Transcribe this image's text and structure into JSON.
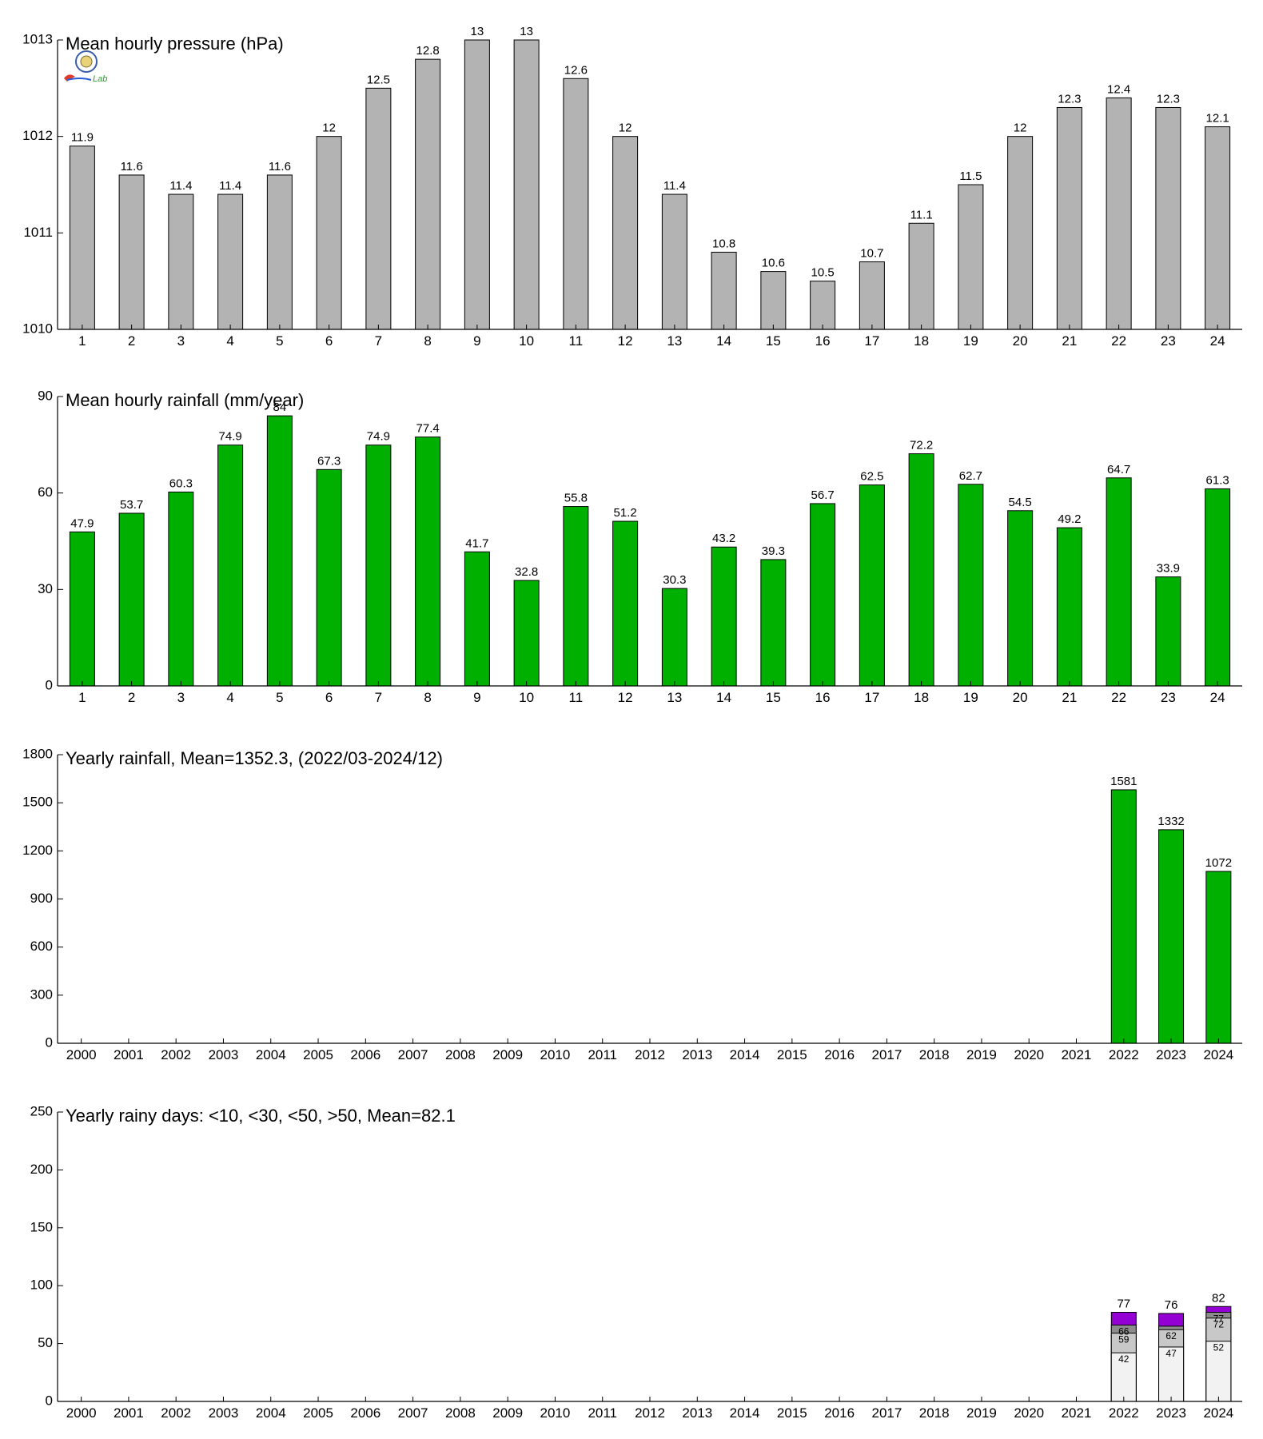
{
  "colors": {
    "pressure_bar": "#b3b3b3",
    "rainfall_bar": "#00b000",
    "yearly_bar": "#00b000",
    "days_lt10": "#f2f2f2",
    "days_lt30": "#c8c8c8",
    "days_lt50": "#8c8c8c",
    "days_gt50": "#9400d3",
    "axis": "#000000"
  },
  "logo": {
    "text": "Lab"
  },
  "chart_data": [
    {
      "id": "pressure",
      "type": "bar",
      "title": "Mean hourly pressure (hPa)",
      "categories": [
        "1",
        "2",
        "3",
        "4",
        "5",
        "6",
        "7",
        "8",
        "9",
        "10",
        "11",
        "12",
        "13",
        "14",
        "15",
        "16",
        "17",
        "18",
        "19",
        "20",
        "21",
        "22",
        "23",
        "24"
      ],
      "values": [
        1011.9,
        1011.6,
        1011.4,
        1011.4,
        1011.6,
        1012.0,
        1012.5,
        1012.8,
        1013.0,
        1013.0,
        1012.6,
        1012.0,
        1011.4,
        1010.8,
        1010.6,
        1010.5,
        1010.7,
        1011.1,
        1011.5,
        1012.0,
        1012.3,
        1012.4,
        1012.3,
        1012.1
      ],
      "value_labels": [
        "11.9",
        "11.6",
        "11.4",
        "11.4",
        "11.6",
        "12",
        "12.5",
        "12.8",
        "13",
        "13",
        "12.6",
        "12",
        "11.4",
        "10.8",
        "10.6",
        "10.5",
        "10.7",
        "11.1",
        "11.5",
        "12",
        "12.3",
        "12.4",
        "12.3",
        "12.1"
      ],
      "ylim": [
        1010,
        1013
      ],
      "yticks": [
        "1010",
        "1011",
        "1012",
        "1013"
      ]
    },
    {
      "id": "rainfall",
      "type": "bar",
      "title": "Mean hourly rainfall (mm/year)",
      "categories": [
        "1",
        "2",
        "3",
        "4",
        "5",
        "6",
        "7",
        "8",
        "9",
        "10",
        "11",
        "12",
        "13",
        "14",
        "15",
        "16",
        "17",
        "18",
        "19",
        "20",
        "21",
        "22",
        "23",
        "24"
      ],
      "values": [
        47.9,
        53.7,
        60.3,
        74.9,
        84,
        67.3,
        74.9,
        77.4,
        41.7,
        32.8,
        55.8,
        51.2,
        30.3,
        43.2,
        39.3,
        56.7,
        62.5,
        72.2,
        62.7,
        54.5,
        49.2,
        64.7,
        33.9,
        61.3
      ],
      "value_labels": [
        "47.9",
        "53.7",
        "60.3",
        "74.9",
        "84",
        "67.3",
        "74.9",
        "77.4",
        "41.7",
        "32.8",
        "55.8",
        "51.2",
        "30.3",
        "43.2",
        "39.3",
        "56.7",
        "62.5",
        "72.2",
        "62.7",
        "54.5",
        "49.2",
        "64.7",
        "33.9",
        "61.3"
      ],
      "ylim": [
        0,
        90
      ],
      "yticks": [
        "0",
        "30",
        "60",
        "90"
      ]
    },
    {
      "id": "yearly",
      "type": "bar",
      "title": "Yearly rainfall, Mean=1352.3, (2022/03-2024/12)",
      "categories": [
        "2000",
        "2001",
        "2002",
        "2003",
        "2004",
        "2005",
        "2006",
        "2007",
        "2008",
        "2009",
        "2010",
        "2011",
        "2012",
        "2013",
        "2014",
        "2015",
        "2016",
        "2017",
        "2018",
        "2019",
        "2020",
        "2021",
        "2022",
        "2023",
        "2024"
      ],
      "values": [
        null,
        null,
        null,
        null,
        null,
        null,
        null,
        null,
        null,
        null,
        null,
        null,
        null,
        null,
        null,
        null,
        null,
        null,
        null,
        null,
        null,
        null,
        1581,
        1332,
        1072
      ],
      "value_labels": [
        "",
        "",
        "",
        "",
        "",
        "",
        "",
        "",
        "",
        "",
        "",
        "",
        "",
        "",
        "",
        "",
        "",
        "",
        "",
        "",
        "",
        "",
        "1581",
        "1332",
        "1072"
      ],
      "ylim": [
        0,
        1800
      ],
      "yticks": [
        "0",
        "300",
        "600",
        "900",
        "1200",
        "1500",
        "1800"
      ]
    },
    {
      "id": "rainydays",
      "type": "bar",
      "stacked": true,
      "title": "Yearly rainy days: <10, <30, <50, >50, Mean=82.1",
      "categories": [
        "2000",
        "2001",
        "2002",
        "2003",
        "2004",
        "2005",
        "2006",
        "2007",
        "2008",
        "2009",
        "2010",
        "2011",
        "2012",
        "2013",
        "2014",
        "2015",
        "2016",
        "2017",
        "2018",
        "2019",
        "2020",
        "2021",
        "2022",
        "2023",
        "2024"
      ],
      "cumulative": [
        {
          "color_key": "days_lt10",
          "values": [
            null,
            null,
            null,
            null,
            null,
            null,
            null,
            null,
            null,
            null,
            null,
            null,
            null,
            null,
            null,
            null,
            null,
            null,
            null,
            null,
            null,
            null,
            42,
            47,
            52
          ],
          "labels": [
            "",
            "",
            "",
            "",
            "",
            "",
            "",
            "",
            "",
            "",
            "",
            "",
            "",
            "",
            "",
            "",
            "",
            "",
            "",
            "",
            "",
            "",
            "42",
            "47",
            "52"
          ]
        },
        {
          "color_key": "days_lt30",
          "values": [
            null,
            null,
            null,
            null,
            null,
            null,
            null,
            null,
            null,
            null,
            null,
            null,
            null,
            null,
            null,
            null,
            null,
            null,
            null,
            null,
            null,
            null,
            59,
            62,
            72
          ],
          "labels": [
            "",
            "",
            "",
            "",
            "",
            "",
            "",
            "",
            "",
            "",
            "",
            "",
            "",
            "",
            "",
            "",
            "",
            "",
            "",
            "",
            "",
            "",
            "59",
            "62",
            "72"
          ]
        },
        {
          "color_key": "days_lt50",
          "values": [
            null,
            null,
            null,
            null,
            null,
            null,
            null,
            null,
            null,
            null,
            null,
            null,
            null,
            null,
            null,
            null,
            null,
            null,
            null,
            null,
            null,
            null,
            66,
            65,
            77
          ],
          "labels": [
            "",
            "",
            "",
            "",
            "",
            "",
            "",
            "",
            "",
            "",
            "",
            "",
            "",
            "",
            "",
            "",
            "",
            "",
            "",
            "",
            "",
            "",
            "66",
            "",
            "77"
          ]
        },
        {
          "color_key": "days_gt50",
          "values": [
            null,
            null,
            null,
            null,
            null,
            null,
            null,
            null,
            null,
            null,
            null,
            null,
            null,
            null,
            null,
            null,
            null,
            null,
            null,
            null,
            null,
            null,
            77,
            76,
            82
          ],
          "labels": []
        }
      ],
      "total_labels": [
        "",
        "",
        "",
        "",
        "",
        "",
        "",
        "",
        "",
        "",
        "",
        "",
        "",
        "",
        "",
        "",
        "",
        "",
        "",
        "",
        "",
        "",
        "77",
        "76",
        "82"
      ],
      "ylim": [
        0,
        250
      ],
      "yticks": [
        "0",
        "50",
        "100",
        "150",
        "200",
        "250"
      ]
    }
  ]
}
